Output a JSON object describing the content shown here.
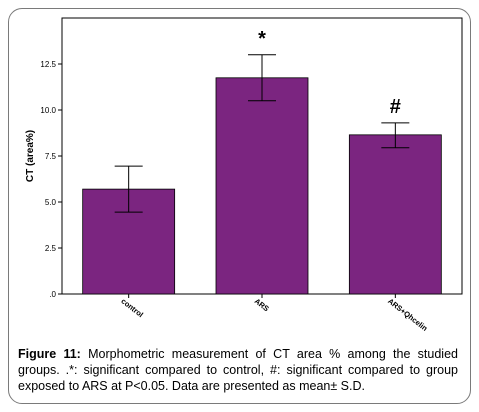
{
  "chart_data": {
    "type": "bar",
    "title": "",
    "xlabel": "",
    "ylabel": "CT (area%)",
    "ylim": [
      0,
      15
    ],
    "yticks": [
      0,
      2.5,
      5.0,
      7.5,
      10.0,
      12.5
    ],
    "ytick_labels": [
      ".0",
      "2.5",
      "5.0",
      "7.5",
      "10.0",
      "12.5"
    ],
    "categories": [
      "control",
      "ARS",
      "ARS+Qhcelin"
    ],
    "values": [
      5.7,
      11.75,
      8.65
    ],
    "error_low": [
      4.45,
      10.5,
      7.95
    ],
    "error_high": [
      6.95,
      13.0,
      9.3
    ],
    "annotations": [
      "",
      "*",
      "#"
    ],
    "bar_color": "#7b2580",
    "grid": false
  },
  "caption": {
    "label": "Figure 11:",
    "text": " Morphometric measurement of CT area % among the studied groups. .*: significant compared to control, #: significant compared to group exposed to ARS at P<0.05. Data are presented as mean± S.D."
  }
}
